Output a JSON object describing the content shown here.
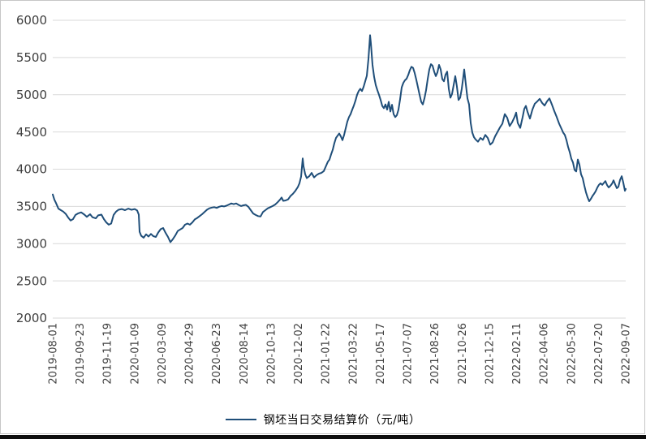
{
  "chart_data": {
    "type": "line",
    "title": "",
    "xlabel": "",
    "ylabel": "",
    "legend": "钢坯当日交易结算价（元/吨）",
    "legend_position": "bottom-center",
    "grid": "horizontal",
    "line_color": "#1f4e79",
    "ylim": [
      2000,
      6000
    ],
    "y_ticks": [
      6000,
      5500,
      5000,
      4500,
      4000,
      3500,
      3000,
      2500,
      2000
    ],
    "x_range": [
      "2019-08-01",
      "2022-09-07"
    ],
    "x_tick_labels": [
      "2019-08-01",
      "2019-09-23",
      "2019-11-19",
      "2020-01-09",
      "2020-03-09",
      "2020-04-29",
      "2020-06-23",
      "2020-08-14",
      "2020-10-13",
      "2020-12-02",
      "2021-01-22",
      "2021-03-22",
      "2021-05-17",
      "2021-07-07",
      "2021-08-26",
      "2021-10-26",
      "2021-12-15",
      "2022-02-11",
      "2022-04-06",
      "2022-05-30",
      "2022-07-20",
      "2022-09-07"
    ],
    "points": [
      [
        0,
        3660
      ],
      [
        0.0028,
        3590
      ],
      [
        0.0057,
        3545
      ],
      [
        0.0099,
        3470
      ],
      [
        0.0142,
        3450
      ],
      [
        0.0184,
        3430
      ],
      [
        0.0227,
        3400
      ],
      [
        0.0269,
        3350
      ],
      [
        0.0312,
        3310
      ],
      [
        0.0354,
        3330
      ],
      [
        0.0397,
        3385
      ],
      [
        0.0439,
        3405
      ],
      [
        0.0496,
        3420
      ],
      [
        0.0552,
        3390
      ],
      [
        0.0595,
        3360
      ],
      [
        0.0652,
        3395
      ],
      [
        0.0694,
        3355
      ],
      [
        0.0751,
        3340
      ],
      [
        0.0793,
        3380
      ],
      [
        0.085,
        3390
      ],
      [
        0.0892,
        3330
      ],
      [
        0.0935,
        3285
      ],
      [
        0.0977,
        3255
      ],
      [
        0.102,
        3270
      ],
      [
        0.1062,
        3385
      ],
      [
        0.1105,
        3430
      ],
      [
        0.1147,
        3455
      ],
      [
        0.1204,
        3465
      ],
      [
        0.1261,
        3450
      ],
      [
        0.1317,
        3470
      ],
      [
        0.1374,
        3455
      ],
      [
        0.1431,
        3465
      ],
      [
        0.1473,
        3445
      ],
      [
        0.1501,
        3390
      ],
      [
        0.1516,
        3160
      ],
      [
        0.1544,
        3105
      ],
      [
        0.1586,
        3080
      ],
      [
        0.1629,
        3125
      ],
      [
        0.1671,
        3095
      ],
      [
        0.1714,
        3130
      ],
      [
        0.1756,
        3100
      ],
      [
        0.1799,
        3090
      ],
      [
        0.1841,
        3150
      ],
      [
        0.1884,
        3195
      ],
      [
        0.1926,
        3210
      ],
      [
        0.1969,
        3145
      ],
      [
        0.2011,
        3090
      ],
      [
        0.2054,
        3020
      ],
      [
        0.2096,
        3060
      ],
      [
        0.2139,
        3110
      ],
      [
        0.2181,
        3170
      ],
      [
        0.2224,
        3190
      ],
      [
        0.2266,
        3210
      ],
      [
        0.2309,
        3255
      ],
      [
        0.2351,
        3270
      ],
      [
        0.2394,
        3255
      ],
      [
        0.2436,
        3285
      ],
      [
        0.2479,
        3325
      ],
      [
        0.2521,
        3345
      ],
      [
        0.2564,
        3370
      ],
      [
        0.2606,
        3395
      ],
      [
        0.2649,
        3425
      ],
      [
        0.2691,
        3455
      ],
      [
        0.2734,
        3475
      ],
      [
        0.2776,
        3485
      ],
      [
        0.2819,
        3490
      ],
      [
        0.2861,
        3480
      ],
      [
        0.2904,
        3495
      ],
      [
        0.2946,
        3505
      ],
      [
        0.2989,
        3500
      ],
      [
        0.3031,
        3510
      ],
      [
        0.3074,
        3525
      ],
      [
        0.3116,
        3540
      ],
      [
        0.3159,
        3530
      ],
      [
        0.3201,
        3540
      ],
      [
        0.3244,
        3520
      ],
      [
        0.3286,
        3505
      ],
      [
        0.3329,
        3515
      ],
      [
        0.3371,
        3520
      ],
      [
        0.3414,
        3495
      ],
      [
        0.3456,
        3450
      ],
      [
        0.3499,
        3405
      ],
      [
        0.3541,
        3385
      ],
      [
        0.3584,
        3370
      ],
      [
        0.3626,
        3365
      ],
      [
        0.3669,
        3425
      ],
      [
        0.3711,
        3450
      ],
      [
        0.3754,
        3475
      ],
      [
        0.3796,
        3490
      ],
      [
        0.3839,
        3505
      ],
      [
        0.3881,
        3525
      ],
      [
        0.3924,
        3555
      ],
      [
        0.3966,
        3590
      ],
      [
        0.3994,
        3620
      ],
      [
        0.4023,
        3575
      ],
      [
        0.4065,
        3580
      ],
      [
        0.4108,
        3595
      ],
      [
        0.415,
        3640
      ],
      [
        0.4193,
        3670
      ],
      [
        0.4235,
        3710
      ],
      [
        0.4278,
        3760
      ],
      [
        0.4306,
        3810
      ],
      [
        0.4334,
        3900
      ],
      [
        0.4363,
        4145
      ],
      [
        0.4377,
        4040
      ],
      [
        0.4405,
        3935
      ],
      [
        0.4433,
        3880
      ],
      [
        0.4476,
        3905
      ],
      [
        0.4518,
        3950
      ],
      [
        0.4561,
        3890
      ],
      [
        0.4603,
        3920
      ],
      [
        0.4646,
        3940
      ],
      [
        0.4688,
        3950
      ],
      [
        0.4731,
        3975
      ],
      [
        0.4773,
        4050
      ],
      [
        0.4802,
        4100
      ],
      [
        0.483,
        4130
      ],
      [
        0.4858,
        4200
      ],
      [
        0.4887,
        4260
      ],
      [
        0.4915,
        4350
      ],
      [
        0.4943,
        4420
      ],
      [
        0.4972,
        4450
      ],
      [
        0.5,
        4480
      ],
      [
        0.5028,
        4440
      ],
      [
        0.5057,
        4390
      ],
      [
        0.5085,
        4460
      ],
      [
        0.5113,
        4550
      ],
      [
        0.5142,
        4640
      ],
      [
        0.517,
        4700
      ],
      [
        0.5198,
        4740
      ],
      [
        0.5227,
        4800
      ],
      [
        0.5255,
        4855
      ],
      [
        0.5283,
        4920
      ],
      [
        0.5312,
        5000
      ],
      [
        0.534,
        5050
      ],
      [
        0.5368,
        5080
      ],
      [
        0.5397,
        5050
      ],
      [
        0.5425,
        5105
      ],
      [
        0.5453,
        5180
      ],
      [
        0.5482,
        5255
      ],
      [
        0.551,
        5480
      ],
      [
        0.5538,
        5800
      ],
      [
        0.5552,
        5690
      ],
      [
        0.5581,
        5400
      ],
      [
        0.5609,
        5240
      ],
      [
        0.5637,
        5130
      ],
      [
        0.5666,
        5060
      ],
      [
        0.5694,
        5000
      ],
      [
        0.5722,
        4930
      ],
      [
        0.5751,
        4850
      ],
      [
        0.5779,
        4820
      ],
      [
        0.5807,
        4870
      ],
      [
        0.5836,
        4800
      ],
      [
        0.5864,
        4905
      ],
      [
        0.5892,
        4775
      ],
      [
        0.5921,
        4865
      ],
      [
        0.5949,
        4740
      ],
      [
        0.5977,
        4700
      ],
      [
        0.6006,
        4725
      ],
      [
        0.6034,
        4800
      ],
      [
        0.6062,
        4940
      ],
      [
        0.6091,
        5100
      ],
      [
        0.6119,
        5160
      ],
      [
        0.6147,
        5195
      ],
      [
        0.6176,
        5215
      ],
      [
        0.6204,
        5265
      ],
      [
        0.6232,
        5330
      ],
      [
        0.6261,
        5375
      ],
      [
        0.6289,
        5360
      ],
      [
        0.6317,
        5290
      ],
      [
        0.6346,
        5200
      ],
      [
        0.6374,
        5100
      ],
      [
        0.6402,
        5000
      ],
      [
        0.6431,
        4905
      ],
      [
        0.6459,
        4870
      ],
      [
        0.6487,
        4950
      ],
      [
        0.6516,
        5060
      ],
      [
        0.6544,
        5210
      ],
      [
        0.6572,
        5340
      ],
      [
        0.6601,
        5410
      ],
      [
        0.6629,
        5390
      ],
      [
        0.6657,
        5310
      ],
      [
        0.6686,
        5250
      ],
      [
        0.6714,
        5300
      ],
      [
        0.6742,
        5400
      ],
      [
        0.6771,
        5340
      ],
      [
        0.6799,
        5210
      ],
      [
        0.6827,
        5180
      ],
      [
        0.6856,
        5270
      ],
      [
        0.6884,
        5310
      ],
      [
        0.6912,
        5080
      ],
      [
        0.6941,
        4960
      ],
      [
        0.6969,
        5010
      ],
      [
        0.6997,
        5130
      ],
      [
        0.7026,
        5250
      ],
      [
        0.7054,
        5110
      ],
      [
        0.7082,
        4930
      ],
      [
        0.7111,
        4960
      ],
      [
        0.7139,
        5080
      ],
      [
        0.7167,
        5250
      ],
      [
        0.7181,
        5340
      ],
      [
        0.721,
        5140
      ],
      [
        0.7238,
        4950
      ],
      [
        0.7266,
        4870
      ],
      [
        0.7295,
        4620
      ],
      [
        0.7323,
        4490
      ],
      [
        0.7351,
        4430
      ],
      [
        0.738,
        4400
      ],
      [
        0.7422,
        4370
      ],
      [
        0.7465,
        4420
      ],
      [
        0.7507,
        4395
      ],
      [
        0.755,
        4460
      ],
      [
        0.7592,
        4420
      ],
      [
        0.7635,
        4330
      ],
      [
        0.7677,
        4360
      ],
      [
        0.772,
        4440
      ],
      [
        0.7762,
        4500
      ],
      [
        0.7805,
        4560
      ],
      [
        0.7847,
        4610
      ],
      [
        0.789,
        4740
      ],
      [
        0.7932,
        4690
      ],
      [
        0.7975,
        4580
      ],
      [
        0.8017,
        4630
      ],
      [
        0.8059,
        4700
      ],
      [
        0.8088,
        4760
      ],
      [
        0.8116,
        4620
      ],
      [
        0.8159,
        4555
      ],
      [
        0.8201,
        4700
      ],
      [
        0.8229,
        4810
      ],
      [
        0.8258,
        4850
      ],
      [
        0.8286,
        4770
      ],
      [
        0.8329,
        4680
      ],
      [
        0.8371,
        4800
      ],
      [
        0.8414,
        4880
      ],
      [
        0.8456,
        4910
      ],
      [
        0.8499,
        4945
      ],
      [
        0.8541,
        4890
      ],
      [
        0.8584,
        4855
      ],
      [
        0.8626,
        4910
      ],
      [
        0.8669,
        4950
      ],
      [
        0.8711,
        4870
      ],
      [
        0.8754,
        4780
      ],
      [
        0.8796,
        4700
      ],
      [
        0.8839,
        4610
      ],
      [
        0.8881,
        4540
      ],
      [
        0.8909,
        4490
      ],
      [
        0.8938,
        4460
      ],
      [
        0.8966,
        4390
      ],
      [
        0.8994,
        4300
      ],
      [
        0.9023,
        4230
      ],
      [
        0.9051,
        4140
      ],
      [
        0.9079,
        4090
      ],
      [
        0.9108,
        3990
      ],
      [
        0.9136,
        3970
      ],
      [
        0.9164,
        4130
      ],
      [
        0.9193,
        4060
      ],
      [
        0.9221,
        3930
      ],
      [
        0.9249,
        3880
      ],
      [
        0.9278,
        3780
      ],
      [
        0.9306,
        3690
      ],
      [
        0.9335,
        3620
      ],
      [
        0.9363,
        3570
      ],
      [
        0.9391,
        3600
      ],
      [
        0.942,
        3640
      ],
      [
        0.9448,
        3670
      ],
      [
        0.9476,
        3705
      ],
      [
        0.9505,
        3755
      ],
      [
        0.9533,
        3790
      ],
      [
        0.9561,
        3810
      ],
      [
        0.959,
        3790
      ],
      [
        0.9618,
        3815
      ],
      [
        0.9646,
        3840
      ],
      [
        0.9675,
        3785
      ],
      [
        0.9703,
        3755
      ],
      [
        0.9731,
        3775
      ],
      [
        0.976,
        3805
      ],
      [
        0.9788,
        3850
      ],
      [
        0.9816,
        3795
      ],
      [
        0.9845,
        3745
      ],
      [
        0.9873,
        3765
      ],
      [
        0.9901,
        3855
      ],
      [
        0.993,
        3905
      ],
      [
        0.9958,
        3820
      ],
      [
        0.9986,
        3710
      ],
      [
        1,
        3735
      ]
    ]
  },
  "colors": {
    "series_line": "#1f4e79",
    "gridline": "#d9d9d9",
    "axis_text": "#404040",
    "chart_border": "#c6c6c6",
    "bottom_edge": "#0d0d0d",
    "background": "#ffffff"
  }
}
